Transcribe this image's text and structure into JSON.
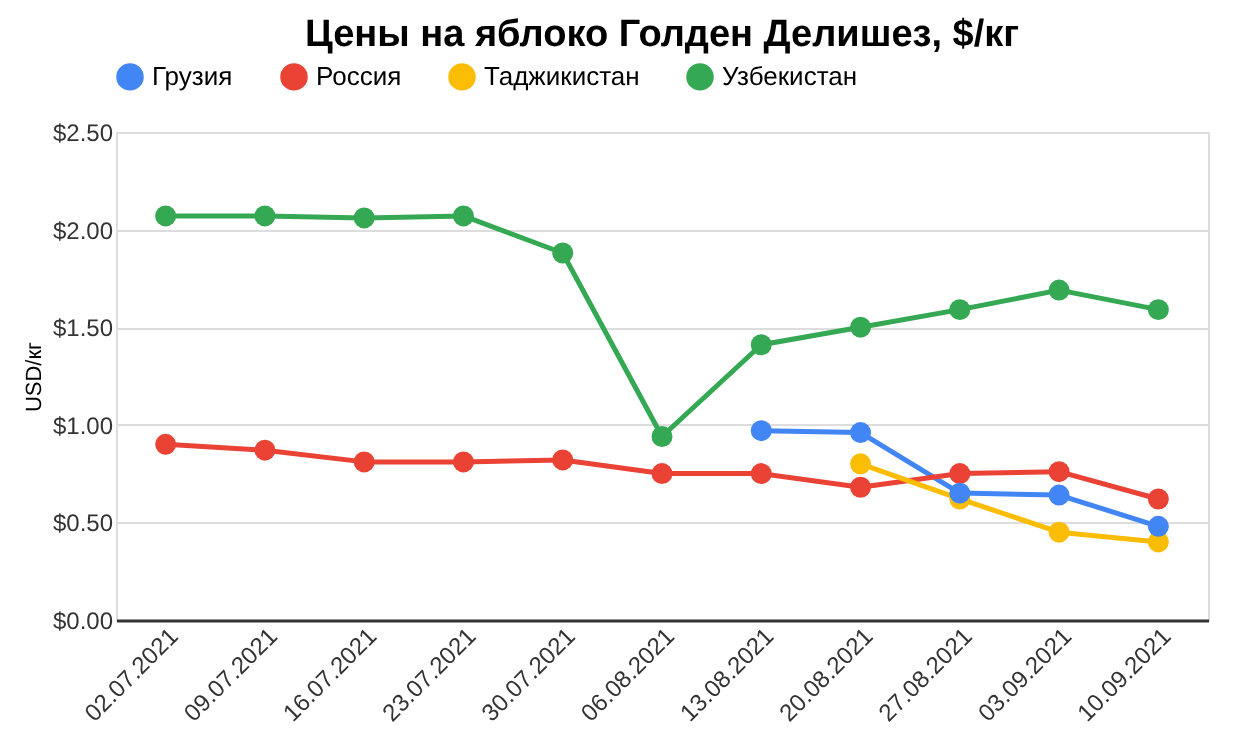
{
  "chart_data": {
    "type": "line",
    "title": "Цены на яблоко Голден Делишез, $/кг",
    "ylabel": "USD/кг",
    "categories": [
      "02.07.2021",
      "09.07.2021",
      "16.07.2021",
      "23.07.2021",
      "30.07.2021",
      "06.08.2021",
      "13.08.2021",
      "20.08.2021",
      "27.08.2021",
      "03.09.2021",
      "10.09.2021"
    ],
    "series": [
      {
        "name": "Грузия",
        "color": "#4285f4",
        "values": [
          null,
          null,
          null,
          null,
          null,
          null,
          0.97,
          0.96,
          0.65,
          0.64,
          0.48
        ]
      },
      {
        "name": "Россия",
        "color": "#ea4335",
        "values": [
          0.9,
          0.87,
          0.81,
          0.81,
          0.82,
          0.75,
          0.75,
          0.68,
          0.75,
          0.76,
          0.62
        ]
      },
      {
        "name": "Таджикистан",
        "color": "#fbbc04",
        "values": [
          null,
          null,
          null,
          null,
          null,
          null,
          null,
          0.8,
          0.62,
          0.45,
          0.4
        ]
      },
      {
        "name": "Узбекистан",
        "color": "#34a853",
        "values": [
          2.07,
          2.07,
          2.06,
          2.07,
          1.88,
          0.94,
          1.41,
          1.5,
          1.59,
          1.69,
          1.59
        ]
      }
    ],
    "ylim": [
      0,
      2.5
    ],
    "yticks": [
      {
        "value": 0,
        "label": "$0.00"
      },
      {
        "value": 0.5,
        "label": "$0.50"
      },
      {
        "value": 1,
        "label": "$1.00"
      },
      {
        "value": 1.5,
        "label": "$1.50"
      },
      {
        "value": 2,
        "label": "$2.00"
      },
      {
        "value": 2.5,
        "label": "$2.50"
      }
    ],
    "grid": "y",
    "legend": "top",
    "marker": "circle",
    "line_style": "solid"
  }
}
